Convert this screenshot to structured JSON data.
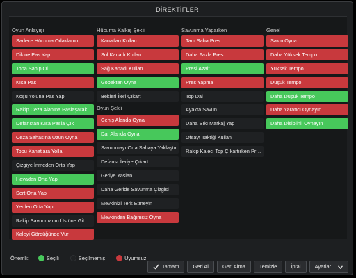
{
  "title": "DİREKTİFLER",
  "columns": [
    {
      "heading": "Oyun Anlayışı",
      "items": [
        {
          "label": "Sadece Hücuma Odaklanın",
          "state": "red"
        },
        {
          "label": "Dikine Pas Yap",
          "state": "red"
        },
        {
          "label": "Topa Sahip Ol",
          "state": "green"
        },
        {
          "label": "Kısa Pas",
          "state": "red"
        },
        {
          "label": "Koşu Yoluna Pas Yap",
          "state": "none"
        },
        {
          "label": "Rakip Ceza Alanına Paslaşarak Gir",
          "state": "green"
        },
        {
          "label": "Defanstan Kısa Pasla Çık",
          "state": "green"
        },
        {
          "label": "Ceza Sahasına Uzun Oyna",
          "state": "red"
        },
        {
          "label": "Topu Kanatlara Yolla",
          "state": "red"
        },
        {
          "label": "Çizgiye İnmeden Orta Yap",
          "state": "none"
        },
        {
          "label": "Havadan Orta Yap",
          "state": "green"
        },
        {
          "label": "Sert Orta Yap",
          "state": "red"
        },
        {
          "label": "Yerden Orta Yap",
          "state": "red"
        },
        {
          "label": "Rakip Savunmanın Üstüne Git",
          "state": "none"
        },
        {
          "label": "Kaleyi Gördüğünde Vur",
          "state": "red"
        }
      ]
    },
    {
      "heading": "Hücuma Kalkış Şekli",
      "items": [
        {
          "label": "Kanatları Kullan",
          "state": "red"
        },
        {
          "label": "Sol Kanadı Kullan",
          "state": "red"
        },
        {
          "label": "Sağ Kanadı Kullan",
          "state": "red"
        },
        {
          "label": "Göbekten Oyna",
          "state": "green"
        },
        {
          "label": "Bekleri İleri Çıkart",
          "state": "none"
        }
      ],
      "subheading": "Oyun Şekli",
      "subitems": [
        {
          "label": "Geniş Alanda Oyna",
          "state": "red"
        },
        {
          "label": "Dar Alanda Oyna",
          "state": "green"
        },
        {
          "label": "Savunmayı Orta Sahaya Yaklaştır",
          "state": "none"
        },
        {
          "label": "Defansı İleriye Çıkart",
          "state": "none"
        },
        {
          "label": "Geriye Yaslan",
          "state": "none"
        },
        {
          "label": "Daha Geride Savunma Çizgisi",
          "state": "none"
        },
        {
          "label": "Mevkinizi Terk Etmeyin",
          "state": "none"
        },
        {
          "label": "Mevkinden Bağımsız Oyna",
          "state": "red"
        }
      ]
    },
    {
      "heading": "Savunma Yaparken",
      "items": [
        {
          "label": "Tam Saha Pres",
          "state": "red"
        },
        {
          "label": "Daha Fazla Pres",
          "state": "red"
        },
        {
          "label": "Presi Azalt",
          "state": "green"
        },
        {
          "label": "Pres Yapma",
          "state": "red"
        },
        {
          "label": "Top Dal",
          "state": "none"
        },
        {
          "label": "Ayakta Savun",
          "state": "none"
        },
        {
          "label": "Daha Sıkı Markaj Yap",
          "state": "none"
        },
        {
          "label": "Ofsayt Taktiği Kullan",
          "state": "none"
        },
        {
          "label": "Rakip Kaleci Top Çıkartırken Pres Yap",
          "state": "none"
        }
      ]
    },
    {
      "heading": "Genel",
      "items": [
        {
          "label": "Sakin Oyna",
          "state": "red"
        },
        {
          "label": "Daha Yüksek Tempo",
          "state": "red"
        },
        {
          "label": "Yüksek Tempo",
          "state": "red"
        },
        {
          "label": "Düşük Tempo",
          "state": "red"
        },
        {
          "label": "Daha Düşük Tempo",
          "state": "green"
        },
        {
          "label": "Daha Yaratıcı Oynayın",
          "state": "red"
        },
        {
          "label": "Daha Disiplinli Oynayın",
          "state": "green"
        }
      ]
    }
  ],
  "legend": {
    "label": "Önemli:",
    "entries": [
      {
        "label": "Seçili",
        "color": "#47c85b"
      },
      {
        "label": "Seçilmemiş",
        "color": "#1f2123"
      },
      {
        "label": "Uyumsuz",
        "color": "#c8393d"
      }
    ]
  },
  "buttons": {
    "confirm": {
      "label": "Tamam",
      "icon": "check-icon"
    },
    "undo": "Geri Al",
    "redo": "Geri Alma",
    "clear": "Temizle",
    "cancel": "İptal",
    "settings": {
      "label": "Ayarlar...",
      "icon": "chevron-down-icon"
    }
  },
  "colors": {
    "selected": "#47c85b",
    "unselected": "#1f2123",
    "incompatible": "#c8393d",
    "background": "#1d1f21"
  }
}
